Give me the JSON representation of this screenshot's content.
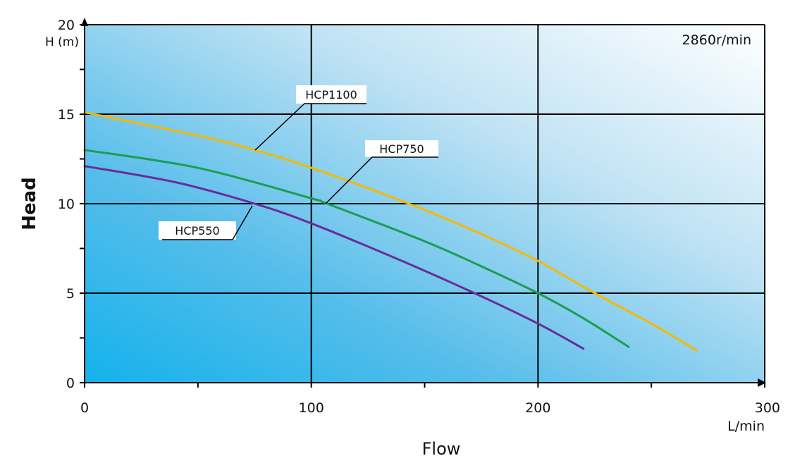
{
  "chart_data": {
    "type": "line",
    "annotation": "2860r/min",
    "xlabel": "Flow",
    "xunit": "L/min",
    "ylabel": "Head",
    "yunit": "H (m)",
    "xlim": [
      0,
      300
    ],
    "ylim": [
      0,
      20
    ],
    "x_ticks": [
      "0",
      "100",
      "200",
      "300"
    ],
    "y_ticks": [
      "0",
      "5",
      "10",
      "15",
      "20"
    ],
    "grid": true,
    "background": "gradient white (top-right) to #1ab4ea (bottom-left)",
    "series": [
      {
        "name": "HCP1100",
        "color": "#f5b800",
        "x": [
          0,
          50,
          75,
          100,
          143,
          175,
          200,
          225,
          250,
          270
        ],
        "y": [
          15.1,
          13.8,
          13.0,
          12.0,
          10.0,
          8.3,
          6.8,
          5.0,
          3.3,
          1.8
        ]
      },
      {
        "name": "HCP750",
        "color": "#1a9e52",
        "x": [
          0,
          50,
          100,
          107,
          150,
          175,
          200,
          220,
          240
        ],
        "y": [
          13.0,
          12.0,
          10.3,
          10.0,
          7.9,
          6.5,
          5.0,
          3.6,
          2.0
        ]
      },
      {
        "name": "HCP550",
        "color": "#6a2c9a",
        "x": [
          0,
          40,
          75,
          100,
          140,
          172,
          200,
          220
        ],
        "y": [
          12.1,
          11.2,
          10.0,
          8.9,
          6.8,
          5.0,
          3.3,
          1.9
        ]
      }
    ]
  }
}
